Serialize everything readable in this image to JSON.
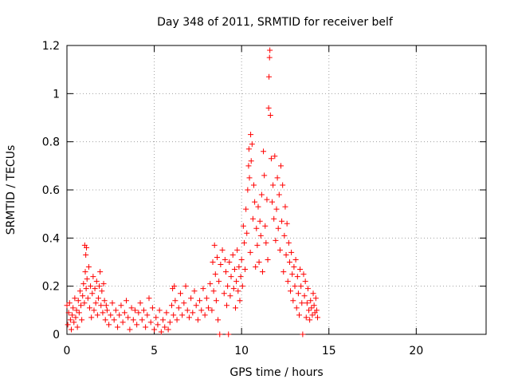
{
  "chart_data": {
    "type": "scatter",
    "title": "Day 348 of 2011, SRMTID for receiver belf",
    "xlabel": "GPS time / hours",
    "ylabel": "SRMTID / TECUs",
    "xlim": [
      0,
      24
    ],
    "ylim": [
      0,
      1.2
    ],
    "x_ticks": [
      "0",
      "5",
      "10",
      "15",
      "20"
    ],
    "x_tick_values": [
      0,
      5,
      10,
      15,
      20
    ],
    "y_ticks": [
      "0",
      "0.2",
      "0.4",
      "0.6",
      "0.8",
      "1",
      "1.2"
    ],
    "y_tick_values": [
      0,
      0.2,
      0.4,
      0.6,
      0.8,
      1.0,
      1.2
    ],
    "grid": true,
    "marker": "+",
    "color": "#ff0000",
    "series": [
      {
        "name": "SRMTID",
        "points": [
          [
            0.0,
            0.12
          ],
          [
            0.05,
            0.04
          ],
          [
            0.1,
            0.09
          ],
          [
            0.15,
            0.13
          ],
          [
            0.2,
            0.06
          ],
          [
            0.25,
            0.02
          ],
          [
            0.3,
            0.08
          ],
          [
            0.35,
            0.11
          ],
          [
            0.4,
            0.05
          ],
          [
            0.45,
            0.15
          ],
          [
            0.5,
            0.07
          ],
          [
            0.55,
            0.1
          ],
          [
            0.6,
            0.03
          ],
          [
            0.65,
            0.14
          ],
          [
            0.7,
            0.09
          ],
          [
            0.75,
            0.18
          ],
          [
            0.8,
            0.12
          ],
          [
            0.85,
            0.06
          ],
          [
            0.9,
            0.16
          ],
          [
            0.95,
            0.21
          ],
          [
            1.0,
            0.13
          ],
          [
            1.02,
            0.37
          ],
          [
            1.05,
            0.26
          ],
          [
            1.08,
            0.33
          ],
          [
            1.1,
            0.19
          ],
          [
            1.12,
            0.36
          ],
          [
            1.15,
            0.23
          ],
          [
            1.2,
            0.15
          ],
          [
            1.25,
            0.28
          ],
          [
            1.3,
            0.11
          ],
          [
            1.35,
            0.2
          ],
          [
            1.4,
            0.07
          ],
          [
            1.45,
            0.17
          ],
          [
            1.5,
            0.24
          ],
          [
            1.55,
            0.1
          ],
          [
            1.6,
            0.19
          ],
          [
            1.65,
            0.13
          ],
          [
            1.7,
            0.22
          ],
          [
            1.75,
            0.08
          ],
          [
            1.8,
            0.15
          ],
          [
            1.85,
            0.2
          ],
          [
            1.9,
            0.26
          ],
          [
            1.95,
            0.12
          ],
          [
            2.0,
            0.18
          ],
          [
            2.05,
            0.09
          ],
          [
            2.1,
            0.21
          ],
          [
            2.15,
            0.14
          ],
          [
            2.2,
            0.06
          ],
          [
            2.25,
            0.12
          ],
          [
            2.3,
            0.1
          ],
          [
            2.4,
            0.04
          ],
          [
            2.5,
            0.08
          ],
          [
            2.6,
            0.13
          ],
          [
            2.7,
            0.06
          ],
          [
            2.8,
            0.1
          ],
          [
            2.9,
            0.03
          ],
          [
            3.0,
            0.08
          ],
          [
            3.1,
            0.12
          ],
          [
            3.2,
            0.05
          ],
          [
            3.3,
            0.09
          ],
          [
            3.4,
            0.14
          ],
          [
            3.5,
            0.07
          ],
          [
            3.6,
            0.02
          ],
          [
            3.7,
            0.11
          ],
          [
            3.8,
            0.06
          ],
          [
            3.9,
            0.1
          ],
          [
            4.0,
            0.04
          ],
          [
            4.1,
            0.09
          ],
          [
            4.2,
            0.13
          ],
          [
            4.3,
            0.06
          ],
          [
            4.4,
            0.1
          ],
          [
            4.5,
            0.03
          ],
          [
            4.6,
            0.08
          ],
          [
            4.7,
            0.15
          ],
          [
            4.8,
            0.05
          ],
          [
            4.9,
            0.11
          ],
          [
            5.0,
            0.02
          ],
          [
            5.1,
            0.07
          ],
          [
            5.2,
            0.04
          ],
          [
            5.3,
            0.1
          ],
          [
            5.4,
            0.01
          ],
          [
            5.5,
            0.06
          ],
          [
            5.6,
            0.03
          ],
          [
            5.7,
            0.09
          ],
          [
            5.8,
            0.02
          ],
          [
            5.9,
            0.05
          ],
          [
            6.0,
            0.12
          ],
          [
            6.05,
            0.19
          ],
          [
            6.1,
            0.08
          ],
          [
            6.15,
            0.2
          ],
          [
            6.2,
            0.14
          ],
          [
            6.3,
            0.06
          ],
          [
            6.4,
            0.11
          ],
          [
            6.5,
            0.17
          ],
          [
            6.6,
            0.08
          ],
          [
            6.7,
            0.13
          ],
          [
            6.8,
            0.2
          ],
          [
            6.9,
            0.1
          ],
          [
            7.0,
            0.07
          ],
          [
            7.1,
            0.15
          ],
          [
            7.2,
            0.09
          ],
          [
            7.3,
            0.18
          ],
          [
            7.4,
            0.12
          ],
          [
            7.5,
            0.06
          ],
          [
            7.6,
            0.14
          ],
          [
            7.7,
            0.1
          ],
          [
            7.8,
            0.19
          ],
          [
            7.9,
            0.08
          ],
          [
            8.0,
            0.15
          ],
          [
            8.1,
            0.11
          ],
          [
            8.2,
            0.21
          ],
          [
            8.3,
            0.1
          ],
          [
            8.35,
            0.3
          ],
          [
            8.4,
            0.18
          ],
          [
            8.45,
            0.37
          ],
          [
            8.5,
            0.25
          ],
          [
            8.55,
            0.14
          ],
          [
            8.6,
            0.32
          ],
          [
            8.65,
            0.06
          ],
          [
            8.7,
            0.22
          ],
          [
            8.75,
            0.0
          ],
          [
            8.8,
            0.29
          ],
          [
            8.9,
            0.35
          ],
          [
            9.0,
            0.17
          ],
          [
            9.05,
            0.31
          ],
          [
            9.1,
            0.26
          ],
          [
            9.15,
            0.12
          ],
          [
            9.2,
            0.2
          ],
          [
            9.25,
            0.0
          ],
          [
            9.3,
            0.3
          ],
          [
            9.35,
            0.16
          ],
          [
            9.4,
            0.24
          ],
          [
            9.5,
            0.33
          ],
          [
            9.55,
            0.19
          ],
          [
            9.6,
            0.27
          ],
          [
            9.65,
            0.11
          ],
          [
            9.7,
            0.22
          ],
          [
            9.75,
            0.35
          ],
          [
            9.8,
            0.18
          ],
          [
            9.85,
            0.28
          ],
          [
            9.9,
            0.14
          ],
          [
            9.95,
            0.24
          ],
          [
            10.0,
            0.31
          ],
          [
            10.05,
            0.2
          ],
          [
            10.1,
            0.45
          ],
          [
            10.15,
            0.38
          ],
          [
            10.2,
            0.27
          ],
          [
            10.25,
            0.52
          ],
          [
            10.3,
            0.42
          ],
          [
            10.35,
            0.6
          ],
          [
            10.4,
            0.7
          ],
          [
            10.42,
            0.77
          ],
          [
            10.45,
            0.65
          ],
          [
            10.5,
            0.34
          ],
          [
            10.52,
            0.83
          ],
          [
            10.55,
            0.72
          ],
          [
            10.6,
            0.79
          ],
          [
            10.65,
            0.48
          ],
          [
            10.7,
            0.62
          ],
          [
            10.75,
            0.55
          ],
          [
            10.8,
            0.28
          ],
          [
            10.85,
            0.44
          ],
          [
            10.9,
            0.37
          ],
          [
            10.95,
            0.53
          ],
          [
            11.0,
            0.3
          ],
          [
            11.05,
            0.47
          ],
          [
            11.1,
            0.41
          ],
          [
            11.15,
            0.58
          ],
          [
            11.2,
            0.26
          ],
          [
            11.25,
            0.76
          ],
          [
            11.3,
            0.66
          ],
          [
            11.35,
            0.45
          ],
          [
            11.4,
            0.38
          ],
          [
            11.45,
            0.56
          ],
          [
            11.5,
            0.31
          ],
          [
            11.55,
            0.94
          ],
          [
            11.57,
            1.07
          ],
          [
            11.6,
            1.15
          ],
          [
            11.62,
            1.18
          ],
          [
            11.65,
            0.91
          ],
          [
            11.7,
            0.73
          ],
          [
            11.75,
            0.55
          ],
          [
            11.8,
            0.62
          ],
          [
            11.85,
            0.48
          ],
          [
            11.9,
            0.74
          ],
          [
            11.95,
            0.39
          ],
          [
            12.0,
            0.52
          ],
          [
            12.05,
            0.65
          ],
          [
            12.1,
            0.44
          ],
          [
            12.15,
            0.58
          ],
          [
            12.2,
            0.35
          ],
          [
            12.25,
            0.7
          ],
          [
            12.3,
            0.47
          ],
          [
            12.35,
            0.62
          ],
          [
            12.4,
            0.26
          ],
          [
            12.45,
            0.41
          ],
          [
            12.5,
            0.53
          ],
          [
            12.55,
            0.33
          ],
          [
            12.6,
            0.46
          ],
          [
            12.65,
            0.22
          ],
          [
            12.7,
            0.38
          ],
          [
            12.75,
            0.3
          ],
          [
            12.8,
            0.18
          ],
          [
            12.85,
            0.34
          ],
          [
            12.9,
            0.25
          ],
          [
            12.95,
            0.14
          ],
          [
            13.0,
            0.28
          ],
          [
            13.05,
            0.2
          ],
          [
            13.1,
            0.31
          ],
          [
            13.15,
            0.11
          ],
          [
            13.2,
            0.24
          ],
          [
            13.25,
            0.17
          ],
          [
            13.3,
            0.08
          ],
          [
            13.35,
            0.27
          ],
          [
            13.4,
            0.2
          ],
          [
            13.45,
            0.13
          ],
          [
            13.5,
            0.0
          ],
          [
            13.55,
            0.25
          ],
          [
            13.6,
            0.16
          ],
          [
            13.65,
            0.22
          ],
          [
            13.7,
            0.07
          ],
          [
            13.75,
            0.13
          ],
          [
            13.8,
            0.19
          ],
          [
            13.85,
            0.1
          ],
          [
            13.9,
            0.06
          ],
          [
            13.95,
            0.14
          ],
          [
            14.0,
            0.11
          ],
          [
            14.05,
            0.08
          ],
          [
            14.1,
            0.17
          ],
          [
            14.15,
            0.12
          ],
          [
            14.2,
            0.09
          ],
          [
            14.25,
            0.15
          ],
          [
            14.3,
            0.1
          ],
          [
            14.35,
            0.07
          ]
        ]
      }
    ]
  }
}
